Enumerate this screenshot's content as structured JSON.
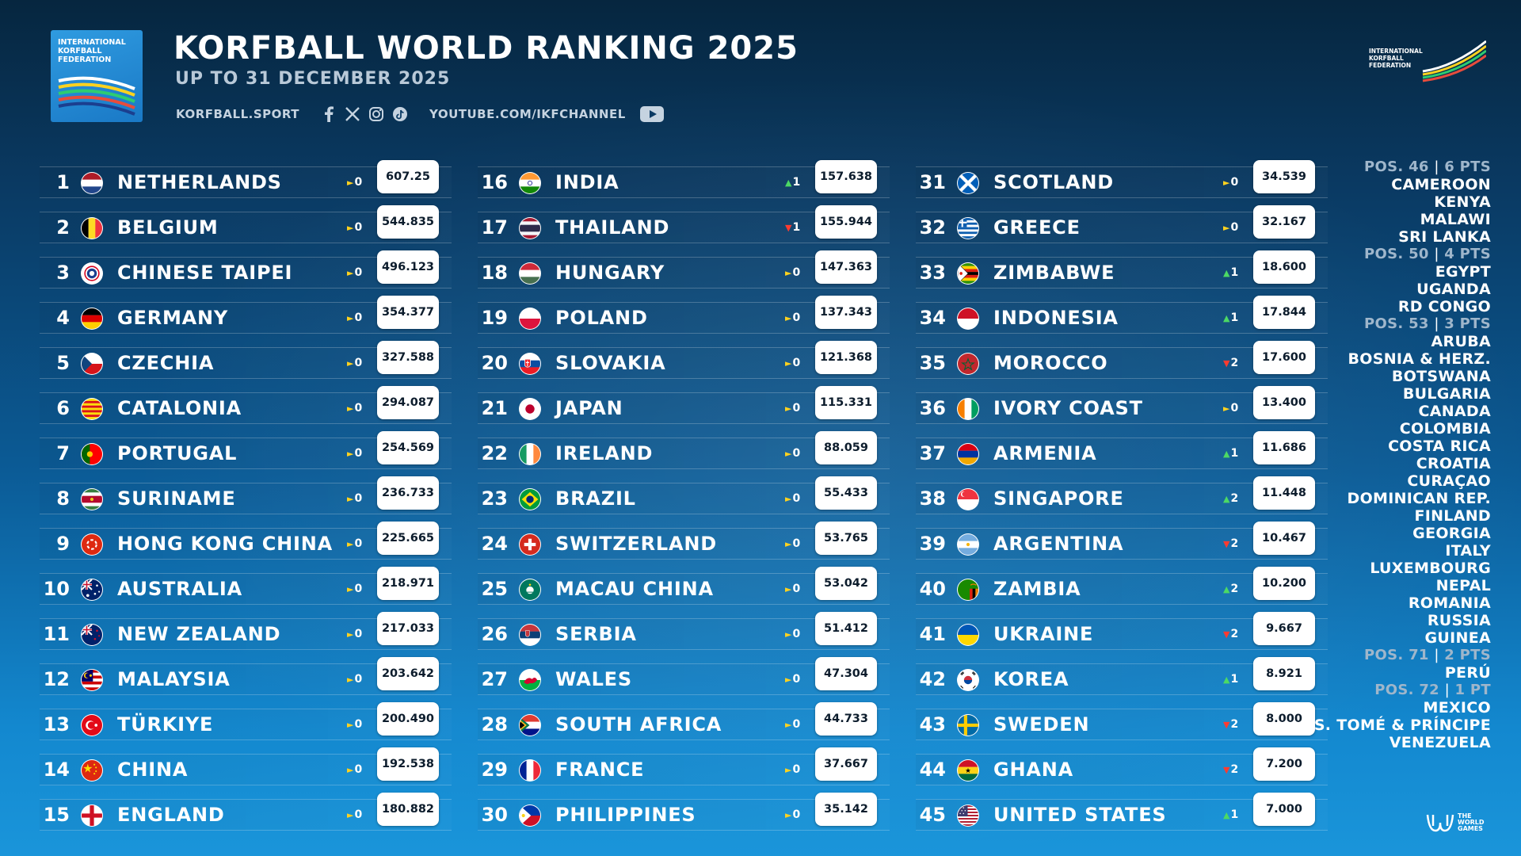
{
  "header": {
    "title": "KORFBALL WORLD RANKING 2025",
    "subtitle": "UP TO 31 DECEMBER 2025",
    "website": "KORFBALL.SPORT",
    "youtube": "YOUTUBE.COM/IKFCHANNEL",
    "logo_text": "INTERNATIONAL KORFBALL FEDERATION",
    "twg_text": "THE WORLD GAMES"
  },
  "colors": {
    "up": "#4cd964",
    "down": "#ff3b30",
    "same": "#ffd21f"
  },
  "icons": [
    "facebook-icon",
    "x-icon",
    "instagram-icon",
    "tiktok-icon",
    "youtube-icon"
  ],
  "columns": [
    [
      {
        "pos": "1",
        "name": "NETHERLANDS",
        "dir": "same",
        "change": "0",
        "pts": "607.25",
        "flag": "nl"
      },
      {
        "pos": "2",
        "name": "BELGIUM",
        "dir": "same",
        "change": "0",
        "pts": "544.835",
        "flag": "be"
      },
      {
        "pos": "3",
        "name": "CHINESE TAIPEI",
        "dir": "same",
        "change": "0",
        "pts": "496.123",
        "flag": "tpe"
      },
      {
        "pos": "4",
        "name": "GERMANY",
        "dir": "same",
        "change": "0",
        "pts": "354.377",
        "flag": "de"
      },
      {
        "pos": "5",
        "name": "CZECHIA",
        "dir": "same",
        "change": "0",
        "pts": "327.588",
        "flag": "cz"
      },
      {
        "pos": "6",
        "name": "CATALONIA",
        "dir": "same",
        "change": "0",
        "pts": "294.087",
        "flag": "cat"
      },
      {
        "pos": "7",
        "name": "PORTUGAL",
        "dir": "same",
        "change": "0",
        "pts": "254.569",
        "flag": "pt"
      },
      {
        "pos": "8",
        "name": "SURINAME",
        "dir": "same",
        "change": "0",
        "pts": "236.733",
        "flag": "sr"
      },
      {
        "pos": "9",
        "name": "HONG KONG CHINA",
        "dir": "same",
        "change": "0",
        "pts": "225.665",
        "flag": "hk"
      },
      {
        "pos": "10",
        "name": "AUSTRALIA",
        "dir": "same",
        "change": "0",
        "pts": "218.971",
        "flag": "au"
      },
      {
        "pos": "11",
        "name": "NEW ZEALAND",
        "dir": "same",
        "change": "0",
        "pts": "217.033",
        "flag": "nz"
      },
      {
        "pos": "12",
        "name": "MALAYSIA",
        "dir": "same",
        "change": "0",
        "pts": "203.642",
        "flag": "my"
      },
      {
        "pos": "13",
        "name": "TÜRKIYE",
        "dir": "same",
        "change": "0",
        "pts": "200.490",
        "flag": "tr"
      },
      {
        "pos": "14",
        "name": "CHINA",
        "dir": "same",
        "change": "0",
        "pts": "192.538",
        "flag": "cn"
      },
      {
        "pos": "15",
        "name": "ENGLAND",
        "dir": "same",
        "change": "0",
        "pts": "180.882",
        "flag": "eng"
      }
    ],
    [
      {
        "pos": "16",
        "name": "INDIA",
        "dir": "up",
        "change": "1",
        "pts": "157.638",
        "flag": "in"
      },
      {
        "pos": "17",
        "name": "THAILAND",
        "dir": "down",
        "change": "1",
        "pts": "155.944",
        "flag": "th"
      },
      {
        "pos": "18",
        "name": "HUNGARY",
        "dir": "same",
        "change": "0",
        "pts": "147.363",
        "flag": "hu"
      },
      {
        "pos": "19",
        "name": "POLAND",
        "dir": "same",
        "change": "0",
        "pts": "137.343",
        "flag": "pl"
      },
      {
        "pos": "20",
        "name": "SLOVAKIA",
        "dir": "same",
        "change": "0",
        "pts": "121.368",
        "flag": "sk"
      },
      {
        "pos": "21",
        "name": "JAPAN",
        "dir": "same",
        "change": "0",
        "pts": "115.331",
        "flag": "jp"
      },
      {
        "pos": "22",
        "name": "IRELAND",
        "dir": "same",
        "change": "0",
        "pts": "88.059",
        "flag": "ie"
      },
      {
        "pos": "23",
        "name": "BRAZIL",
        "dir": "same",
        "change": "0",
        "pts": "55.433",
        "flag": "br"
      },
      {
        "pos": "24",
        "name": "SWITZERLAND",
        "dir": "same",
        "change": "0",
        "pts": "53.765",
        "flag": "ch"
      },
      {
        "pos": "25",
        "name": "MACAU CHINA",
        "dir": "same",
        "change": "0",
        "pts": "53.042",
        "flag": "mo"
      },
      {
        "pos": "26",
        "name": "SERBIA",
        "dir": "same",
        "change": "0",
        "pts": "51.412",
        "flag": "rs"
      },
      {
        "pos": "27",
        "name": "WALES",
        "dir": "same",
        "change": "0",
        "pts": "47.304",
        "flag": "wls"
      },
      {
        "pos": "28",
        "name": "SOUTH AFRICA",
        "dir": "same",
        "change": "0",
        "pts": "44.733",
        "flag": "za"
      },
      {
        "pos": "29",
        "name": "FRANCE",
        "dir": "same",
        "change": "0",
        "pts": "37.667",
        "flag": "fr"
      },
      {
        "pos": "30",
        "name": "PHILIPPINES",
        "dir": "same",
        "change": "0",
        "pts": "35.142",
        "flag": "ph"
      }
    ],
    [
      {
        "pos": "31",
        "name": "SCOTLAND",
        "dir": "same",
        "change": "0",
        "pts": "34.539",
        "flag": "sct"
      },
      {
        "pos": "32",
        "name": "GREECE",
        "dir": "same",
        "change": "0",
        "pts": "32.167",
        "flag": "gr"
      },
      {
        "pos": "33",
        "name": "ZIMBABWE",
        "dir": "up",
        "change": "1",
        "pts": "18.600",
        "flag": "zw"
      },
      {
        "pos": "34",
        "name": "INDONESIA",
        "dir": "up",
        "change": "1",
        "pts": "17.844",
        "flag": "id"
      },
      {
        "pos": "35",
        "name": "MOROCCO",
        "dir": "down",
        "change": "2",
        "pts": "17.600",
        "flag": "ma"
      },
      {
        "pos": "36",
        "name": "IVORY COAST",
        "dir": "same",
        "change": "0",
        "pts": "13.400",
        "flag": "ci"
      },
      {
        "pos": "37",
        "name": "ARMENIA",
        "dir": "up",
        "change": "1",
        "pts": "11.686",
        "flag": "am"
      },
      {
        "pos": "38",
        "name": "SINGAPORE",
        "dir": "up",
        "change": "2",
        "pts": "11.448",
        "flag": "sg"
      },
      {
        "pos": "39",
        "name": "ARGENTINA",
        "dir": "down",
        "change": "2",
        "pts": "10.467",
        "flag": "ar"
      },
      {
        "pos": "40",
        "name": "ZAMBIA",
        "dir": "up",
        "change": "2",
        "pts": "10.200",
        "flag": "zm"
      },
      {
        "pos": "41",
        "name": "UKRAINE",
        "dir": "down",
        "change": "2",
        "pts": "9.667",
        "flag": "ua"
      },
      {
        "pos": "42",
        "name": "KOREA",
        "dir": "up",
        "change": "1",
        "pts": "8.921",
        "flag": "kr"
      },
      {
        "pos": "43",
        "name": "SWEDEN",
        "dir": "down",
        "change": "2",
        "pts": "8.000",
        "flag": "se"
      },
      {
        "pos": "44",
        "name": "GHANA",
        "dir": "down",
        "change": "2",
        "pts": "7.200",
        "flag": "gh"
      },
      {
        "pos": "45",
        "name": "UNITED STATES",
        "dir": "up",
        "change": "1",
        "pts": "7.000",
        "flag": "us"
      }
    ]
  ],
  "extra_groups": [
    {
      "pos": "POS. 46",
      "pts": "6 PTS",
      "teams": [
        "CAMEROON",
        "KENYA",
        "MALAWI",
        "SRI LANKA"
      ]
    },
    {
      "pos": "POS. 50",
      "pts": "4 PTS",
      "teams": [
        "EGYPT",
        "UGANDA",
        "RD CONGO"
      ]
    },
    {
      "pos": "POS. 53",
      "pts": "3 PTS",
      "teams": [
        "ARUBA",
        "BOSNIA & HERZ.",
        "BOTSWANA",
        "BULGARIA",
        "CANADA",
        "COLOMBIA",
        "COSTA RICA",
        "CROATIA",
        "CURAÇAO",
        "DOMINICAN REP.",
        "FINLAND",
        "GEORGIA",
        "ITALY",
        "LUXEMBOURG",
        "NEPAL",
        "ROMANIA",
        "RUSSIA",
        "GUINEA"
      ]
    },
    {
      "pos": "POS. 71",
      "pts": "2 PTS",
      "teams": [
        "PERÚ"
      ]
    },
    {
      "pos": "POS. 72",
      "pts": "1 PT",
      "teams": [
        "MEXICO",
        "S. TOMÉ & PRÍNCIPE",
        "VENEZUELA"
      ]
    }
  ]
}
